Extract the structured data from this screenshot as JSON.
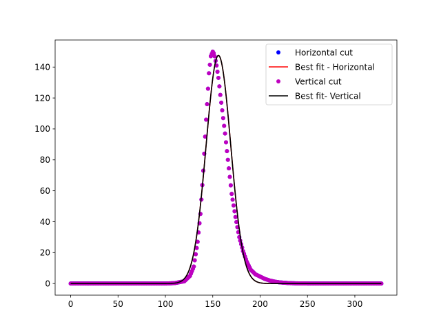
{
  "chart_data": {
    "type": "scatter",
    "title": "",
    "xlabel": "",
    "ylabel": "",
    "xlim": [
      -16.4,
      344.4
    ],
    "ylim": [
      -7.5,
      157.5
    ],
    "xticks": [
      0,
      50,
      100,
      150,
      200,
      250,
      300
    ],
    "yticks": [
      0,
      20,
      40,
      60,
      80,
      100,
      120,
      140
    ],
    "grid": false,
    "legend_position": "top-right",
    "colors": {
      "horizontal_cut": "#0000ff",
      "best_fit_horizontal": "#ff0000",
      "vertical_cut": "#bf00bf",
      "best_fit_vertical": "#000000"
    },
    "series": [
      {
        "name": "Horizontal cut",
        "kind": "points",
        "x": [
          0,
          20,
          40,
          60,
          80,
          100,
          110,
          120,
          126,
          130,
          134,
          137,
          140,
          143,
          146,
          148,
          150,
          151,
          152,
          154,
          156,
          158,
          160,
          163,
          166,
          170,
          174,
          178,
          182,
          186,
          190,
          195,
          200,
          205,
          210,
          215,
          220,
          230,
          240,
          260,
          280,
          300,
          328
        ],
        "y": [
          0,
          0,
          0,
          0,
          0,
          0,
          0.3,
          1.5,
          5,
          11,
          27,
          45,
          73,
          106,
          136,
          147,
          150,
          149,
          147,
          141,
          133,
          122,
          112,
          97,
          80,
          58,
          43,
          30,
          21,
          14,
          9,
          6,
          4.5,
          3,
          2,
          1.3,
          0.8,
          0.3,
          0.1,
          0,
          0,
          0,
          0
        ]
      },
      {
        "name": "Best fit - Horizontal",
        "kind": "line",
        "model": "gaussian",
        "amplitude": 147.5,
        "center": 156,
        "sigma": 13,
        "x_range": [
          0,
          328
        ]
      },
      {
        "name": "Vertical cut",
        "kind": "points",
        "x": [
          0,
          20,
          40,
          60,
          80,
          100,
          110,
          120,
          126,
          130,
          134,
          137,
          140,
          143,
          146,
          148,
          150,
          151,
          152,
          154,
          156,
          158,
          160,
          163,
          166,
          170,
          174,
          178,
          182,
          186,
          190,
          195,
          200,
          205,
          210,
          215,
          220,
          230,
          240,
          260,
          280,
          300,
          328
        ],
        "y": [
          0,
          0,
          0,
          0,
          0,
          0,
          0.3,
          1.5,
          5,
          11,
          27,
          45,
          73,
          106,
          136,
          147,
          150,
          149,
          147,
          141,
          133,
          122,
          112,
          97,
          80,
          58,
          43,
          30,
          21,
          14,
          9,
          6,
          4.5,
          3,
          2,
          1.3,
          0.8,
          0.3,
          0.1,
          0,
          0,
          0,
          0
        ]
      },
      {
        "name": "Best fit- Vertical",
        "kind": "line",
        "model": "gaussian",
        "amplitude": 147.5,
        "center": 156,
        "sigma": 13,
        "x_range": [
          0,
          328
        ]
      }
    ]
  }
}
